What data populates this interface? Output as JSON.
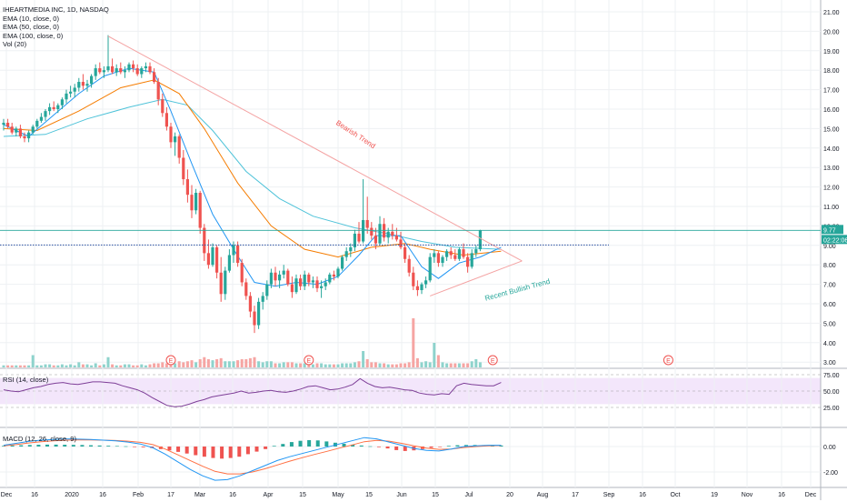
{
  "legend": {
    "symbol": "IHEARTMEDIA INC, 1D, NASDAQ",
    "ema10": "EMA (10, close, 0)",
    "ema50": "EMA (50, close, 0)",
    "ema100": "EMA (100, close, 0)",
    "vol": "Vol (20)",
    "rsi": "RSI (14, close)",
    "macd": "MACD (12, 26, close, 9)"
  },
  "price_tag": {
    "value": "9.77",
    "timer": "02:22:06"
  },
  "annotations": {
    "bearish": "Bearish Trend",
    "bullish": "Recent Bullish Trend"
  },
  "earnings_marker": "E",
  "colors": {
    "up": "#26a69a",
    "down": "#ef5350",
    "ema10": "#2196f3",
    "ema50": "#f57c00",
    "ema100": "#4fc3d9",
    "trend_line": "#f4a3a3",
    "rsi_line": "#7e3f98",
    "rsi_band": "#f3e6fb",
    "macd_line": "#2196f3",
    "signal_line": "#ff7043",
    "grid": "#eef0f3",
    "tag": "#26a69a",
    "level_line": "#2a4fa0"
  },
  "chart_data": [
    {
      "type": "candlestick",
      "title": "IHEARTMEDIA INC, 1D, NASDAQ",
      "x_tick_labels": [
        "Dec",
        "16",
        "2020",
        "16",
        "Feb",
        "17",
        "Mar",
        "16",
        "Apr",
        "15",
        "May",
        "15",
        "Jun",
        "15",
        "Jul",
        "20",
        "Aug",
        "17",
        "Sep",
        "16",
        "Oct",
        "19",
        "Nov",
        "16",
        "Dec"
      ],
      "y_tick_labels": [
        "21.00",
        "20.00",
        "19.00",
        "18.00",
        "17.00",
        "16.00",
        "15.00",
        "14.00",
        "13.00",
        "12.00",
        "11.00",
        "10.00",
        "9.00",
        "8.00",
        "7.00",
        "6.00",
        "5.00",
        "4.00",
        "3.00"
      ],
      "ylim": [
        3,
        21.5
      ],
      "y_ticks": [
        21,
        20,
        19,
        18,
        17,
        16,
        15,
        14,
        13,
        12,
        11,
        10,
        9,
        8,
        7,
        6,
        5,
        4,
        3
      ],
      "last_price": 9.77,
      "highlighted_level": 9.02,
      "candles": [
        [
          15.2,
          15.5,
          14.9,
          15.3
        ],
        [
          15.3,
          15.5,
          15.0,
          15.1
        ],
        [
          15.1,
          15.3,
          14.7,
          14.8
        ],
        [
          14.8,
          15.1,
          14.6,
          15.0
        ],
        [
          15.0,
          15.2,
          14.5,
          14.6
        ],
        [
          14.6,
          14.8,
          14.3,
          14.5
        ],
        [
          14.5,
          14.9,
          14.3,
          14.8
        ],
        [
          14.8,
          15.2,
          14.7,
          15.1
        ],
        [
          15.1,
          15.5,
          15.0,
          15.4
        ],
        [
          15.4,
          15.8,
          15.3,
          15.6
        ],
        [
          15.6,
          16.0,
          15.4,
          15.9
        ],
        [
          15.9,
          16.3,
          15.7,
          16.1
        ],
        [
          16.1,
          16.4,
          15.9,
          16.0
        ],
        [
          16.0,
          16.3,
          15.8,
          16.2
        ],
        [
          16.2,
          16.6,
          16.0,
          16.5
        ],
        [
          16.5,
          17.0,
          16.3,
          16.8
        ],
        [
          16.8,
          17.2,
          16.6,
          16.9
        ],
        [
          16.9,
          17.3,
          16.6,
          17.1
        ],
        [
          17.1,
          17.6,
          16.9,
          17.4
        ],
        [
          17.4,
          17.8,
          17.0,
          17.2
        ],
        [
          17.2,
          17.5,
          16.9,
          17.3
        ],
        [
          17.3,
          17.8,
          17.1,
          17.7
        ],
        [
          17.7,
          18.3,
          17.5,
          18.1
        ],
        [
          18.1,
          18.4,
          17.8,
          17.9
        ],
        [
          17.9,
          18.2,
          17.6,
          18.0
        ],
        [
          18.0,
          19.8,
          17.9,
          18.2
        ],
        [
          18.2,
          18.6,
          17.8,
          17.9
        ],
        [
          17.9,
          18.3,
          17.7,
          18.1
        ],
        [
          18.1,
          18.4,
          17.8,
          17.9
        ],
        [
          17.9,
          18.2,
          17.6,
          18.0
        ],
        [
          18.0,
          18.4,
          17.9,
          18.3
        ],
        [
          18.3,
          18.5,
          17.9,
          18.1
        ],
        [
          18.1,
          18.3,
          17.7,
          17.8
        ],
        [
          17.8,
          18.2,
          17.6,
          18.1
        ],
        [
          18.1,
          18.4,
          17.9,
          18.2
        ],
        [
          18.2,
          18.4,
          17.8,
          17.9
        ],
        [
          17.9,
          18.1,
          17.3,
          17.4
        ],
        [
          17.4,
          17.6,
          16.2,
          16.5
        ],
        [
          16.5,
          16.8,
          15.6,
          15.8
        ],
        [
          15.8,
          16.1,
          14.9,
          15.1
        ],
        [
          15.1,
          15.3,
          14.0,
          14.3
        ],
        [
          14.3,
          14.8,
          13.6,
          14.6
        ],
        [
          14.6,
          14.7,
          13.2,
          13.5
        ],
        [
          13.5,
          13.9,
          12.1,
          12.4
        ],
        [
          12.4,
          12.9,
          11.2,
          11.6
        ],
        [
          11.6,
          12.1,
          10.4,
          10.8
        ],
        [
          10.8,
          11.9,
          10.6,
          11.7
        ],
        [
          11.7,
          11.8,
          9.6,
          9.9
        ],
        [
          9.9,
          10.1,
          8.2,
          8.6
        ],
        [
          8.6,
          9.3,
          7.8,
          8.0
        ],
        [
          8.0,
          9.1,
          7.9,
          8.9
        ],
        [
          8.9,
          9.0,
          7.3,
          7.6
        ],
        [
          7.6,
          8.4,
          6.1,
          6.5
        ],
        [
          6.5,
          7.9,
          6.2,
          7.7
        ],
        [
          7.7,
          8.8,
          7.6,
          8.5
        ],
        [
          8.5,
          9.2,
          8.1,
          9.0
        ],
        [
          9.0,
          9.2,
          7.9,
          8.1
        ],
        [
          8.1,
          8.3,
          6.9,
          7.1
        ],
        [
          7.1,
          7.3,
          6.2,
          6.4
        ],
        [
          6.4,
          6.6,
          5.3,
          5.6
        ],
        [
          5.6,
          5.9,
          4.5,
          4.9
        ],
        [
          4.9,
          6.3,
          4.7,
          6.1
        ],
        [
          6.1,
          6.6,
          5.7,
          6.4
        ],
        [
          6.4,
          7.2,
          6.2,
          7.0
        ],
        [
          7.0,
          7.8,
          6.8,
          7.6
        ],
        [
          7.6,
          7.9,
          6.9,
          7.2
        ],
        [
          7.2,
          7.7,
          6.8,
          7.5
        ],
        [
          7.5,
          8.0,
          7.3,
          7.7
        ],
        [
          7.7,
          7.8,
          6.9,
          7.0
        ],
        [
          7.0,
          7.4,
          6.3,
          6.6
        ],
        [
          6.6,
          7.5,
          6.5,
          7.3
        ],
        [
          7.3,
          7.5,
          6.7,
          6.9
        ],
        [
          6.9,
          7.7,
          6.7,
          7.5
        ],
        [
          7.5,
          7.6,
          6.9,
          7.1
        ],
        [
          7.1,
          7.4,
          6.8,
          7.2
        ],
        [
          7.2,
          7.4,
          6.6,
          6.8
        ],
        [
          6.8,
          7.2,
          6.3,
          6.9
        ],
        [
          6.9,
          7.3,
          6.7,
          7.1
        ],
        [
          7.1,
          7.6,
          7.0,
          7.5
        ],
        [
          7.5,
          7.7,
          7.2,
          7.4
        ],
        [
          7.4,
          7.9,
          7.3,
          7.8
        ],
        [
          7.8,
          8.5,
          7.7,
          8.4
        ],
        [
          8.4,
          8.9,
          8.2,
          8.7
        ],
        [
          8.7,
          9.1,
          8.4,
          8.9
        ],
        [
          8.9,
          9.8,
          8.7,
          9.6
        ],
        [
          9.6,
          10.2,
          9.1,
          9.2
        ],
        [
          9.2,
          12.4,
          9.1,
          10.3
        ],
        [
          10.3,
          11.5,
          9.6,
          9.9
        ],
        [
          9.9,
          10.2,
          9.3,
          9.5
        ],
        [
          9.5,
          9.9,
          8.8,
          9.1
        ],
        [
          9.1,
          10.5,
          9.0,
          10.1
        ],
        [
          10.1,
          10.4,
          9.2,
          9.4
        ],
        [
          9.4,
          9.9,
          9.1,
          9.7
        ],
        [
          9.7,
          10.1,
          9.3,
          9.5
        ],
        [
          9.5,
          9.9,
          9.2,
          9.3
        ],
        [
          9.3,
          9.7,
          8.8,
          8.9
        ],
        [
          8.9,
          9.1,
          8.1,
          8.3
        ],
        [
          8.3,
          8.5,
          7.4,
          7.6
        ],
        [
          7.6,
          7.9,
          6.7,
          6.9
        ],
        [
          6.9,
          7.2,
          6.4,
          6.7
        ],
        [
          6.7,
          7.1,
          6.5,
          7.0
        ],
        [
          7.0,
          7.4,
          6.8,
          7.2
        ],
        [
          7.2,
          8.6,
          7.1,
          8.4
        ],
        [
          8.4,
          8.8,
          8.1,
          8.6
        ],
        [
          8.6,
          8.7,
          7.9,
          8.1
        ],
        [
          8.1,
          8.5,
          7.9,
          8.4
        ],
        [
          8.4,
          8.8,
          8.2,
          8.7
        ],
        [
          8.7,
          8.9,
          8.3,
          8.5
        ],
        [
          8.5,
          8.8,
          8.2,
          8.3
        ],
        [
          8.3,
          8.9,
          8.2,
          8.8
        ],
        [
          8.8,
          9.1,
          8.3,
          8.4
        ],
        [
          8.4,
          8.6,
          7.6,
          7.9
        ],
        [
          7.9,
          8.8,
          7.8,
          8.6
        ],
        [
          8.6,
          9.0,
          8.4,
          8.8
        ],
        [
          8.8,
          9.8,
          8.7,
          9.77
        ]
      ],
      "ema10": [
        [
          0,
          15.2
        ],
        [
          6,
          14.6
        ],
        [
          12,
          15.7
        ],
        [
          18,
          16.8
        ],
        [
          24,
          17.7
        ],
        [
          30,
          18.1
        ],
        [
          36,
          17.9
        ],
        [
          40,
          15.9
        ],
        [
          45,
          13.2
        ],
        [
          50,
          10.6
        ],
        [
          55,
          8.8
        ],
        [
          60,
          7.1
        ],
        [
          65,
          6.9
        ],
        [
          70,
          7.1
        ],
        [
          75,
          7.0
        ],
        [
          80,
          7.4
        ],
        [
          85,
          8.5
        ],
        [
          89,
          9.5
        ],
        [
          95,
          9.5
        ],
        [
          100,
          7.9
        ],
        [
          104,
          7.3
        ],
        [
          109,
          8.1
        ],
        [
          114,
          8.4
        ],
        [
          119,
          8.9
        ]
      ],
      "ema50": [
        [
          0,
          15.0
        ],
        [
          8,
          14.9
        ],
        [
          18,
          15.9
        ],
        [
          28,
          17.1
        ],
        [
          36,
          17.5
        ],
        [
          42,
          16.8
        ],
        [
          48,
          15.0
        ],
        [
          56,
          12.2
        ],
        [
          64,
          10.0
        ],
        [
          72,
          8.8
        ],
        [
          80,
          8.4
        ],
        [
          88,
          8.9
        ],
        [
          96,
          9.1
        ],
        [
          102,
          8.8
        ],
        [
          110,
          8.5
        ],
        [
          119,
          8.7
        ]
      ],
      "ema100": [
        [
          0,
          14.6
        ],
        [
          10,
          14.7
        ],
        [
          20,
          15.5
        ],
        [
          30,
          16.1
        ],
        [
          38,
          16.5
        ],
        [
          44,
          16.2
        ],
        [
          50,
          14.9
        ],
        [
          58,
          12.8
        ],
        [
          66,
          11.4
        ],
        [
          74,
          10.5
        ],
        [
          84,
          9.9
        ],
        [
          92,
          9.6
        ],
        [
          100,
          9.2
        ],
        [
          108,
          8.9
        ],
        [
          119,
          8.8
        ]
      ],
      "trendlines": [
        {
          "label": "Bearish Trend",
          "from": [
            25,
            19.75
          ],
          "to": [
            124,
            8.2
          ]
        },
        {
          "label": "Recent Bullish Trend",
          "from": [
            102,
            6.4
          ],
          "to": [
            124,
            8.2
          ]
        }
      ],
      "volume": [
        2,
        2,
        2,
        2,
        2,
        2,
        2,
        12,
        2,
        2,
        3,
        3,
        2,
        2,
        3,
        2,
        3,
        2,
        5,
        3,
        3,
        2,
        4,
        2,
        3,
        10,
        3,
        2,
        2,
        3,
        3,
        2,
        2,
        3,
        2,
        3,
        4,
        4,
        5,
        4,
        5,
        4,
        6,
        5,
        6,
        7,
        5,
        8,
        10,
        8,
        7,
        8,
        9,
        6,
        6,
        6,
        7,
        8,
        8,
        9,
        10,
        6,
        5,
        6,
        6,
        4,
        4,
        5,
        5,
        5,
        4,
        4,
        4,
        4,
        3,
        4,
        4,
        3,
        3,
        3,
        3,
        4,
        4,
        4,
        5,
        6,
        16,
        8,
        5,
        5,
        4,
        4,
        3,
        3,
        3,
        4,
        4,
        5,
        48,
        9,
        5,
        6,
        5,
        24,
        12,
        5,
        4,
        4,
        4,
        4,
        4,
        4,
        6,
        8,
        5,
        4,
        4,
        12,
        6,
        5
      ],
      "earnings_markers_x": [
        40,
        73,
        117,
        159
      ]
    },
    {
      "type": "line",
      "title": "RSI (14, close)",
      "ylim": [
        0,
        100
      ],
      "y_tick_labels": [
        "75.00",
        "50.00",
        "25.00"
      ],
      "y_ticks": [
        75,
        50,
        25
      ],
      "band": [
        30,
        70
      ],
      "values": [
        52,
        50,
        49,
        52,
        55,
        57,
        60,
        62,
        63,
        61,
        60,
        62,
        64,
        64,
        63,
        62,
        58,
        55,
        52,
        47,
        40,
        34,
        28,
        26,
        27,
        30,
        34,
        37,
        41,
        43,
        45,
        47,
        50,
        47,
        48,
        50,
        51,
        49,
        48,
        50,
        53,
        57,
        58,
        55,
        52,
        53,
        56,
        60,
        69,
        62,
        57,
        55,
        56,
        54,
        52,
        51,
        47,
        45,
        44,
        46,
        45,
        58,
        62,
        60,
        59,
        58,
        58,
        63
      ]
    },
    {
      "type": "bar",
      "title": "MACD (12, 26, close, 9)",
      "ylim": [
        -2.8,
        1.2
      ],
      "y_tick_labels": [
        "0.00",
        "-2.00"
      ],
      "y_ticks": [
        0,
        -2
      ],
      "histogram": [
        0.05,
        0.08,
        0.1,
        0.12,
        0.14,
        0.15,
        0.15,
        0.14,
        0.13,
        0.12,
        0.1,
        0.08,
        0.06,
        0.04,
        0.02,
        -0.02,
        -0.06,
        -0.12,
        -0.2,
        -0.3,
        -0.42,
        -0.55,
        -0.68,
        -0.8,
        -0.9,
        -0.95,
        -0.9,
        -0.8,
        -0.6,
        -0.4,
        -0.2,
        0.05,
        0.2,
        0.35,
        0.45,
        0.5,
        0.48,
        0.4,
        0.3,
        0.22,
        0.15,
        0.08,
        0.02,
        -0.05,
        -0.15,
        -0.28,
        -0.35,
        -0.3,
        -0.2,
        -0.1,
        -0.02,
        0.05,
        0.1,
        0.12,
        0.12,
        0.11,
        0.1,
        0.08
      ],
      "macd": [
        0.1,
        0.25,
        0.4,
        0.5,
        0.55,
        0.6,
        0.58,
        0.55,
        0.5,
        0.45,
        0.35,
        0.2,
        -0.1,
        -0.6,
        -1.2,
        -1.8,
        -2.3,
        -2.65,
        -2.6,
        -2.3,
        -1.9,
        -1.5,
        -1.1,
        -0.8,
        -0.55,
        -0.3,
        -0.05,
        0.2,
        0.45,
        0.7,
        0.6,
        0.35,
        0.1,
        -0.15,
        -0.3,
        -0.35,
        -0.2,
        0.0,
        0.05,
        0.1,
        0.1
      ],
      "signal": [
        0.05,
        0.15,
        0.28,
        0.38,
        0.45,
        0.5,
        0.52,
        0.52,
        0.5,
        0.47,
        0.42,
        0.33,
        0.15,
        -0.2,
        -0.65,
        -1.1,
        -1.55,
        -1.95,
        -2.15,
        -2.15,
        -2.0,
        -1.75,
        -1.45,
        -1.15,
        -0.88,
        -0.62,
        -0.38,
        -0.12,
        0.12,
        0.38,
        0.48,
        0.42,
        0.25,
        0.05,
        -0.12,
        -0.22,
        -0.2,
        -0.08,
        0.0,
        0.05,
        0.08
      ]
    }
  ]
}
